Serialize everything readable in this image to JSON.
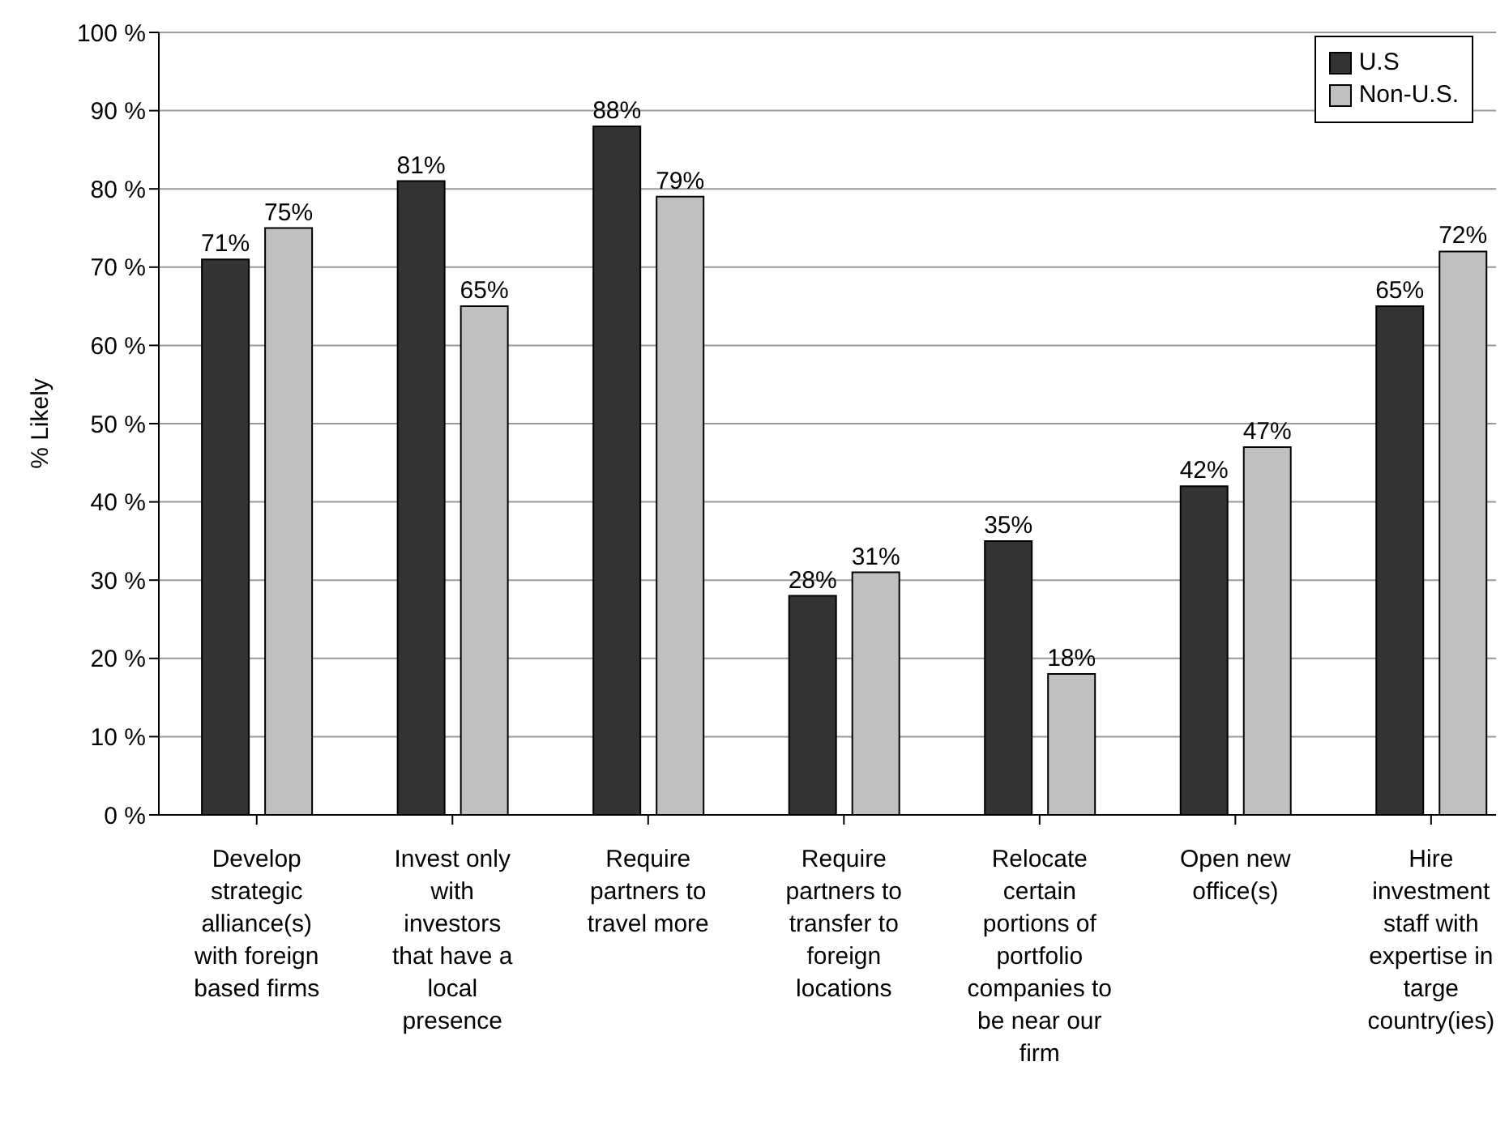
{
  "chart_data": {
    "type": "bar",
    "ylabel": "% Likely",
    "categories": [
      "Develop strategic alliance(s) with foreign based firms",
      "Invest only with investors that have a local presence",
      "Require partners to travel more",
      "Require partners to transfer to foreign locations",
      "Relocate certain portions of portfolio companies to be near our firm",
      "Open new office(s)",
      "Hire investment staff with expertise in targe country(ies)"
    ],
    "series": [
      {
        "name": "U.S",
        "color": "#333333",
        "values": [
          71,
          81,
          88,
          28,
          35,
          42,
          65
        ],
        "value_labels": [
          "71%",
          "81%",
          "88%",
          "28%",
          "35%",
          "42%",
          "65%"
        ]
      },
      {
        "name": "Non-U.S.",
        "color": "#c0c0c0",
        "values": [
          75,
          65,
          79,
          31,
          18,
          47,
          72
        ],
        "value_labels": [
          "75%",
          "65%",
          "79%",
          "31%",
          "18%",
          "47%",
          "72%"
        ]
      }
    ],
    "ylim": [
      0,
      100
    ],
    "yticks": [
      {
        "value": 0,
        "label": "0 %"
      },
      {
        "value": 10,
        "label": "10 %"
      },
      {
        "value": 20,
        "label": "20 %"
      },
      {
        "value": 30,
        "label": "30 %"
      },
      {
        "value": 40,
        "label": "40 %"
      },
      {
        "value": 50,
        "label": "50 %"
      },
      {
        "value": 60,
        "label": "60 %"
      },
      {
        "value": 70,
        "label": "70 %"
      },
      {
        "value": 80,
        "label": "80 %"
      },
      {
        "value": 90,
        "label": "90 %"
      },
      {
        "value": 100,
        "label": "100 %"
      }
    ],
    "grid": "y",
    "legend": "top right"
  }
}
